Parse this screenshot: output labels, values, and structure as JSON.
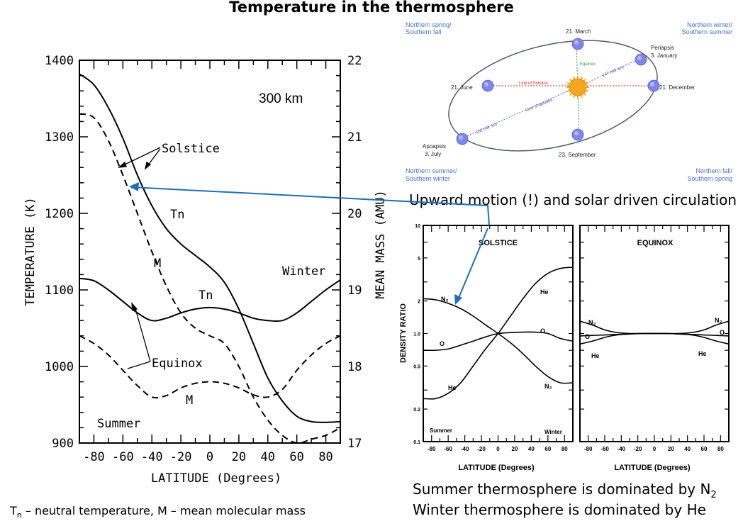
{
  "title": "Temperature in the thermosphere",
  "left_chart": {
    "chart_data": {
      "type": "line",
      "xlabel": "LATITUDE (Degrees)",
      "ylabel": "TEMPERATURE (K)",
      "y2label": "MEAN MASS (AMU)",
      "xlim": [
        -90,
        90
      ],
      "ylim": [
        900,
        1400
      ],
      "y2lim": [
        17,
        22
      ],
      "xticks": [
        "-80",
        "-60",
        "-40",
        "-20",
        "0",
        "20",
        "40",
        "60",
        "80"
      ],
      "yticks": [
        "900",
        "1000",
        "1100",
        "1200",
        "1300",
        "1400"
      ],
      "y2ticks": [
        "17",
        "18",
        "19",
        "20",
        "21",
        "22"
      ],
      "altitude_label": "300 km",
      "side_labels": [
        "Winter",
        "Summer"
      ],
      "series": [
        {
          "id": "tn_solstice",
          "axis": "left",
          "style": "solid",
          "x": [
            -90,
            -80,
            -70,
            -60,
            -50,
            -40,
            -30,
            -20,
            -10,
            0,
            10,
            20,
            30,
            40,
            50,
            60,
            70,
            80,
            90
          ],
          "y": [
            1382,
            1368,
            1338,
            1298,
            1250,
            1210,
            1180,
            1160,
            1145,
            1130,
            1110,
            1075,
            1030,
            985,
            955,
            935,
            928,
            927,
            928
          ]
        },
        {
          "id": "m_solstice",
          "axis": "right",
          "style": "dashed",
          "x": [
            -90,
            -80,
            -70,
            -60,
            -50,
            -40,
            -30,
            -20,
            -10,
            0,
            10,
            20,
            30,
            40,
            50,
            60,
            70,
            80,
            90
          ],
          "y": [
            21.3,
            21.25,
            20.95,
            20.5,
            20.0,
            19.5,
            19.05,
            18.7,
            18.5,
            18.4,
            18.3,
            18.0,
            17.6,
            17.3,
            17.1,
            17.0,
            17.05,
            17.1,
            17.2
          ]
        },
        {
          "id": "tn_equinox",
          "axis": "left",
          "style": "solid",
          "x": [
            -90,
            -80,
            -70,
            -60,
            -50,
            -40,
            -30,
            -20,
            -10,
            0,
            10,
            20,
            30,
            40,
            50,
            60,
            70,
            80,
            90
          ],
          "y": [
            1115,
            1112,
            1100,
            1085,
            1070,
            1060,
            1063,
            1070,
            1075,
            1077,
            1075,
            1070,
            1063,
            1060,
            1060,
            1070,
            1085,
            1100,
            1113
          ]
        },
        {
          "id": "m_equinox",
          "axis": "right",
          "style": "dashed",
          "x": [
            -90,
            -80,
            -70,
            -60,
            -50,
            -40,
            -30,
            -20,
            -10,
            0,
            10,
            20,
            30,
            40,
            50,
            60,
            70,
            80,
            90
          ],
          "y": [
            18.4,
            18.3,
            18.15,
            17.95,
            17.75,
            17.6,
            17.62,
            17.72,
            17.78,
            17.8,
            17.78,
            17.72,
            17.63,
            17.6,
            17.7,
            17.95,
            18.15,
            18.3,
            18.4
          ]
        }
      ],
      "annotations": [
        "Solstice",
        "Equinox",
        "Tn",
        "M",
        "Tn",
        "M"
      ]
    }
  },
  "orbit": {
    "seasons": {
      "top_left": [
        "Northern spring/",
        "Southern fall"
      ],
      "top_right": [
        "Northern winter/",
        "Southern summer"
      ],
      "bottom_left": [
        "Northern summer/",
        "Southern winter"
      ],
      "bottom_right": [
        "Northern fall/",
        "Southern spring"
      ]
    },
    "points": {
      "march": "21. March",
      "periapsis": [
        "Periapsis",
        "3. January"
      ],
      "june": "21. June",
      "december": "21. December",
      "apoapsis": [
        "Apoapsis",
        "3. July"
      ],
      "september": "23. September"
    },
    "lines": {
      "equinox": "Equinox",
      "solstice": "Line of Solstice",
      "apsides": "Line of apsides",
      "near": "147 mill. km",
      "far": "152 mill. km"
    },
    "colors": {
      "sun": "#f5a623",
      "planet": "#7f86e6",
      "ellipse": "#555577",
      "solstice_line": "#d0202a",
      "equinox_line": "#2ca02c"
    }
  },
  "right_heading": "Upward motion (!) and solar driven circulation",
  "density_charts": {
    "ylabel": "DENSITY RATIO",
    "xlabel": "LATITUDE (Degrees)",
    "yticks": [
      "0.1",
      "0.2",
      "0.5",
      "1.0",
      "2",
      "5",
      "10"
    ],
    "xticks": [
      "-80",
      "-60",
      "-40",
      "-20",
      "0",
      "20",
      "40",
      "60",
      "80"
    ],
    "chart_data": [
      {
        "type": "line",
        "title": "SOLSTICE",
        "xlim": [
          -90,
          90
        ],
        "ylim": [
          0.1,
          10
        ],
        "yscale": "log",
        "side_labels": [
          "Summer",
          "Winter"
        ],
        "series": [
          {
            "name": "N2",
            "label": "N₂",
            "x": [
              -90,
              -75,
              -60,
              -45,
              -30,
              -15,
              0,
              15,
              30,
              45,
              60,
              75,
              90
            ],
            "y": [
              2.1,
              2.05,
              1.9,
              1.7,
              1.45,
              1.2,
              1.0,
              0.82,
              0.65,
              0.5,
              0.4,
              0.35,
              0.35
            ]
          },
          {
            "name": "O",
            "label": "O",
            "x": [
              -90,
              -75,
              -60,
              -45,
              -30,
              -15,
              0,
              15,
              30,
              45,
              60,
              75,
              90
            ],
            "y": [
              0.7,
              0.7,
              0.72,
              0.78,
              0.85,
              0.93,
              1.0,
              1.02,
              1.03,
              1.03,
              1.0,
              0.9,
              0.85
            ]
          },
          {
            "name": "He",
            "label": "He",
            "x": [
              -90,
              -75,
              -60,
              -45,
              -30,
              -15,
              0,
              15,
              30,
              45,
              60,
              75,
              90
            ],
            "y": [
              0.25,
              0.25,
              0.28,
              0.35,
              0.5,
              0.72,
              1.0,
              1.45,
              2.1,
              2.9,
              3.6,
              4.0,
              4.1
            ]
          }
        ]
      },
      {
        "type": "line",
        "title": "EQUINOX",
        "xlim": [
          -90,
          90
        ],
        "ylim": [
          0.1,
          10
        ],
        "yscale": "log",
        "series": [
          {
            "name": "N2",
            "label": "N₂",
            "x": [
              -90,
              -75,
              -60,
              -45,
              -30,
              -15,
              0,
              15,
              30,
              45,
              60,
              75,
              90
            ],
            "y": [
              1.3,
              1.2,
              1.08,
              1.02,
              1.0,
              1.0,
              1.0,
              1.0,
              1.0,
              1.02,
              1.08,
              1.2,
              1.3
            ]
          },
          {
            "name": "O",
            "label": "O",
            "x": [
              -90,
              -75,
              -60,
              -45,
              -30,
              -15,
              0,
              15,
              30,
              45,
              60,
              75,
              90
            ],
            "y": [
              0.95,
              0.96,
              0.97,
              0.98,
              0.99,
              1.0,
              1.0,
              1.0,
              0.99,
              0.98,
              0.97,
              0.96,
              0.95
            ]
          },
          {
            "name": "He",
            "label": "He",
            "x": [
              -90,
              -75,
              -60,
              -45,
              -30,
              -15,
              0,
              15,
              30,
              45,
              60,
              75,
              90
            ],
            "y": [
              0.8,
              0.85,
              0.92,
              0.97,
              0.99,
              1.0,
              1.0,
              1.0,
              0.99,
              0.97,
              0.92,
              0.85,
              0.8
            ]
          }
        ]
      }
    ]
  },
  "caption_right": [
    "Summer thermosphere  is dominated by N",
    "2",
    "Winter thermosphere is dominated by He"
  ],
  "caption_left": [
    "T",
    "n",
    " – neutral temperature, M – mean molecular mass"
  ],
  "arrow_color": "#1f6fb5"
}
